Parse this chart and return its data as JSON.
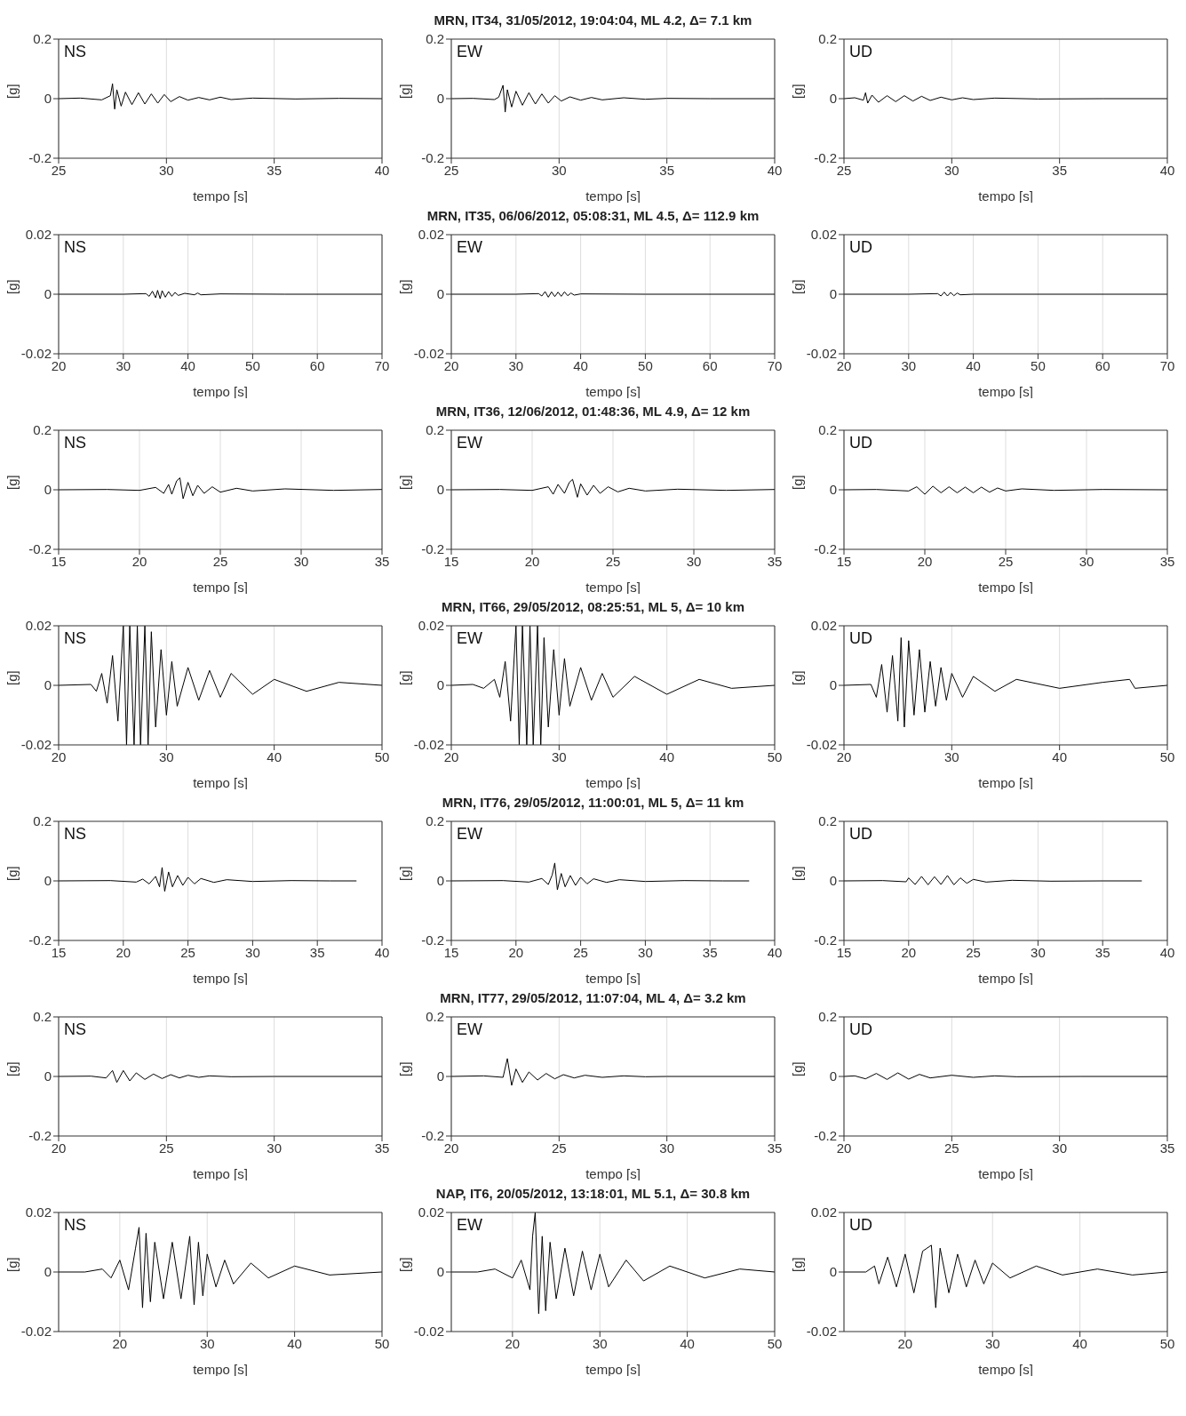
{
  "chart_data": [
    {
      "type": "line",
      "x": [
        25,
        26,
        27,
        27.4,
        27.5,
        27.6,
        27.7,
        27.9,
        28.1,
        28.4,
        28.7,
        29,
        29.3,
        29.6,
        29.9,
        30.2,
        30.6,
        31,
        31.5,
        32,
        32.5,
        33,
        34,
        36,
        38,
        40
      ],
      "values": [
        0,
        0.002,
        -0.004,
        0.01,
        0.05,
        -0.035,
        0.03,
        -0.025,
        0.022,
        -0.02,
        0.02,
        -0.018,
        0.016,
        -0.015,
        0.014,
        -0.01,
        0.007,
        -0.005,
        0.004,
        -0.004,
        0.005,
        -0.003,
        0.002,
        -0.001,
        0.001,
        0
      ],
      "color": "#000000",
      "xlim": [
        25,
        40
      ],
      "ylim": [
        -0.2,
        0.2
      ],
      "xticks": [
        25,
        30,
        35,
        40
      ],
      "yticks": [
        -0.2,
        0,
        0.2
      ],
      "xlabel": "tempo [s]",
      "ylabel": "[g]",
      "grid": "x",
      "annotations": [
        "NS"
      ]
    },
    {
      "type": "line",
      "title": "MRN, IT34, 31/05/2012, 19:04:04, ML 4.2, Δ= 7.1 km",
      "x": [
        25,
        26,
        27,
        27.2,
        27.4,
        27.5,
        27.6,
        27.8,
        28,
        28.3,
        28.6,
        28.9,
        29.2,
        29.5,
        29.8,
        30.1,
        30.5,
        31,
        31.5,
        32,
        33,
        34,
        35,
        37,
        40
      ],
      "values": [
        0,
        0.001,
        -0.003,
        0.005,
        0.045,
        -0.045,
        0.03,
        -0.028,
        0.025,
        -0.022,
        0.02,
        -0.018,
        0.016,
        -0.015,
        0.01,
        -0.008,
        0.006,
        -0.005,
        0.004,
        -0.004,
        0.003,
        -0.002,
        0.001,
        0,
        0
      ],
      "color": "#000000",
      "xlim": [
        25,
        40
      ],
      "ylim": [
        -0.2,
        0.2
      ],
      "xticks": [
        25,
        30,
        35,
        40
      ],
      "yticks": [
        -0.2,
        0,
        0.2
      ],
      "xlabel": "tempo [s]",
      "ylabel": "[g]",
      "grid": "x",
      "annotations": [
        "EW"
      ]
    },
    {
      "type": "line",
      "x": [
        25,
        25.5,
        25.9,
        26,
        26.1,
        26.3,
        26.6,
        27,
        27.4,
        27.8,
        28.2,
        28.6,
        29,
        29.5,
        30,
        30.5,
        31,
        32,
        34,
        37,
        40
      ],
      "values": [
        0,
        0.003,
        -0.005,
        0.02,
        -0.015,
        0.012,
        -0.012,
        0.01,
        -0.01,
        0.01,
        -0.008,
        0.008,
        -0.006,
        0.005,
        -0.004,
        0.003,
        -0.003,
        0.002,
        -0.001,
        0,
        0
      ],
      "color": "#000000",
      "xlim": [
        25,
        40
      ],
      "ylim": [
        -0.2,
        0.2
      ],
      "xticks": [
        25,
        30,
        35,
        40
      ],
      "yticks": [
        -0.2,
        0,
        0.2
      ],
      "xlabel": "tempo [s]",
      "ylabel": "[g]",
      "grid": "x",
      "annotations": [
        "UD"
      ]
    },
    {
      "type": "line",
      "x": [
        20,
        30,
        33.5,
        34,
        34.5,
        35,
        35.3,
        35.7,
        36,
        36.5,
        37,
        37.5,
        38,
        38.5,
        39.5,
        41,
        41.5,
        42,
        45,
        55,
        70
      ],
      "values": [
        0,
        0,
        0.0002,
        -0.0007,
        0.001,
        -0.0012,
        0.0013,
        -0.0015,
        0.0012,
        -0.001,
        0.0009,
        -0.0007,
        0.0006,
        -0.0004,
        0.0003,
        -0.0002,
        0.0004,
        -0.0002,
        0.0001,
        0,
        0
      ],
      "color": "#000000",
      "xlim": [
        20,
        70
      ],
      "ylim": [
        -0.02,
        0.02
      ],
      "xticks": [
        20,
        30,
        40,
        50,
        60,
        70
      ],
      "yticks": [
        -0.02,
        0,
        0.02
      ],
      "xlabel": "tempo [s]",
      "ylabel": "[g]",
      "grid": "x",
      "annotations": [
        "NS"
      ]
    },
    {
      "type": "line",
      "title": "MRN, IT35, 06/06/2012, 05:08:31, ML 4.5, Δ= 112.9 km",
      "x": [
        20,
        30,
        33.5,
        34,
        34.5,
        35,
        35.5,
        36,
        36.5,
        37,
        37.5,
        38,
        38.5,
        39,
        40,
        50,
        70
      ],
      "values": [
        0,
        0,
        0.0002,
        -0.0006,
        0.0009,
        -0.001,
        0.0008,
        -0.0008,
        0.0007,
        -0.0007,
        0.0008,
        -0.0005,
        0.0004,
        -0.0003,
        0.0001,
        0,
        0
      ],
      "color": "#000000",
      "xlim": [
        20,
        70
      ],
      "ylim": [
        -0.02,
        0.02
      ],
      "xticks": [
        20,
        30,
        40,
        50,
        60,
        70
      ],
      "yticks": [
        -0.02,
        0,
        0.02
      ],
      "xlabel": "tempo [s]",
      "ylabel": "[g]",
      "grid": "x",
      "annotations": [
        "EW"
      ]
    },
    {
      "type": "line",
      "x": [
        20,
        30,
        34.5,
        35,
        35.5,
        36,
        36.5,
        37,
        37.5,
        38,
        40,
        70
      ],
      "values": [
        0,
        0,
        0.0002,
        -0.0006,
        0.0007,
        -0.0006,
        0.0006,
        -0.0005,
        0.0004,
        -0.0002,
        0,
        0
      ],
      "color": "#000000",
      "xlim": [
        20,
        70
      ],
      "ylim": [
        -0.02,
        0.02
      ],
      "xticks": [
        20,
        30,
        40,
        50,
        60,
        70
      ],
      "yticks": [
        -0.02,
        0,
        0.02
      ],
      "xlabel": "tempo [s]",
      "ylabel": "[g]",
      "grid": "x",
      "annotations": [
        "UD"
      ]
    },
    {
      "type": "line",
      "x": [
        15,
        18,
        20,
        21,
        21.5,
        21.8,
        22,
        22.3,
        22.5,
        22.7,
        23,
        23.3,
        23.6,
        24,
        24.5,
        25,
        26,
        27,
        29,
        32,
        35
      ],
      "values": [
        0,
        0.001,
        -0.002,
        0.008,
        -0.012,
        0.018,
        -0.015,
        0.03,
        0.04,
        -0.03,
        0.025,
        -0.02,
        0.015,
        -0.012,
        0.01,
        -0.008,
        0.005,
        -0.004,
        0.003,
        -0.002,
        0.001
      ],
      "color": "#000000",
      "xlim": [
        15,
        35
      ],
      "ylim": [
        -0.2,
        0.2
      ],
      "xticks": [
        15,
        20,
        25,
        30,
        35
      ],
      "yticks": [
        -0.2,
        0,
        0.2
      ],
      "xlabel": "tempo [s]",
      "ylabel": "[g]",
      "grid": "x",
      "annotations": [
        "NS"
      ]
    },
    {
      "type": "line",
      "title": "MRN, IT36, 12/06/2012, 01:48:36, ML 4.9, Δ= 12 km",
      "x": [
        15,
        18,
        20,
        21,
        21.3,
        21.6,
        22,
        22.3,
        22.5,
        22.8,
        23,
        23.4,
        23.8,
        24.2,
        24.7,
        25.3,
        26,
        27,
        29,
        32,
        35
      ],
      "values": [
        0,
        0.001,
        -0.002,
        0.01,
        -0.015,
        0.018,
        -0.012,
        0.025,
        0.035,
        -0.025,
        0.02,
        -0.018,
        0.015,
        -0.012,
        0.01,
        -0.007,
        0.005,
        -0.004,
        0.002,
        -0.002,
        0.001
      ],
      "color": "#000000",
      "xlim": [
        15,
        35
      ],
      "ylim": [
        -0.2,
        0.2
      ],
      "xticks": [
        15,
        20,
        25,
        30,
        35
      ],
      "yticks": [
        -0.2,
        0,
        0.2
      ],
      "xlabel": "tempo [s]",
      "ylabel": "[g]",
      "grid": "x",
      "annotations": [
        "EW"
      ]
    },
    {
      "type": "line",
      "x": [
        15,
        17,
        19,
        19.5,
        20,
        20.5,
        21,
        21.5,
        22,
        22.5,
        23,
        23.5,
        24,
        24.5,
        25,
        26,
        28,
        31,
        35
      ],
      "values": [
        0,
        0.001,
        -0.004,
        0.01,
        -0.015,
        0.012,
        -0.01,
        0.01,
        -0.01,
        0.009,
        -0.01,
        0.009,
        -0.008,
        0.006,
        -0.004,
        0.003,
        -0.002,
        0.001,
        0
      ],
      "color": "#000000",
      "xlim": [
        15,
        35
      ],
      "ylim": [
        -0.2,
        0.2
      ],
      "xticks": [
        15,
        20,
        25,
        30,
        35
      ],
      "yticks": [
        -0.2,
        0,
        0.2
      ],
      "xlabel": "tempo [s]",
      "ylabel": "[g]",
      "grid": "x",
      "annotations": [
        "UD"
      ]
    },
    {
      "type": "line",
      "x": [
        20,
        23,
        23.5,
        24,
        24.5,
        25,
        25.5,
        26,
        26.3,
        26.6,
        27,
        27.3,
        27.6,
        28,
        28.3,
        28.6,
        29,
        29.5,
        30,
        30.5,
        31,
        32,
        33,
        34,
        35,
        36,
        38,
        40,
        43,
        46,
        50
      ],
      "values": [
        0,
        0.0003,
        -0.002,
        0.004,
        -0.006,
        0.01,
        -0.012,
        0.02,
        -0.02,
        0.02,
        -0.02,
        0.02,
        -0.02,
        0.02,
        -0.02,
        0.018,
        -0.014,
        0.012,
        -0.01,
        0.008,
        -0.007,
        0.006,
        -0.005,
        0.005,
        -0.004,
        0.004,
        -0.003,
        0.002,
        -0.002,
        0.001,
        0
      ],
      "color": "#000000",
      "xlim": [
        20,
        50
      ],
      "ylim": [
        -0.02,
        0.02
      ],
      "xticks": [
        20,
        30,
        40,
        50
      ],
      "yticks": [
        -0.02,
        0,
        0.02
      ],
      "xlabel": "tempo [s]",
      "ylabel": "[g]",
      "grid": "x",
      "annotations": [
        "NS"
      ]
    },
    {
      "type": "line",
      "title": "MRN, IT66, 29/05/2012, 08:25:51, ML 5, Δ= 10 km",
      "x": [
        20,
        22,
        23,
        24,
        24.5,
        25,
        25.5,
        26,
        26.3,
        26.6,
        27,
        27.3,
        27.6,
        28,
        28.3,
        28.6,
        29,
        29.5,
        30,
        30.5,
        31,
        32,
        33,
        34,
        35,
        37,
        40,
        43,
        46,
        50
      ],
      "values": [
        0,
        0.0003,
        -0.001,
        0.002,
        -0.004,
        0.008,
        -0.012,
        0.02,
        -0.02,
        0.02,
        -0.02,
        0.02,
        -0.02,
        0.02,
        -0.02,
        0.016,
        -0.014,
        0.012,
        -0.01,
        0.009,
        -0.007,
        0.006,
        -0.005,
        0.004,
        -0.004,
        0.003,
        -0.003,
        0.002,
        -0.001,
        0
      ],
      "color": "#000000",
      "xlim": [
        20,
        50
      ],
      "ylim": [
        -0.02,
        0.02
      ],
      "xticks": [
        20,
        30,
        40,
        50
      ],
      "yticks": [
        -0.02,
        0,
        0.02
      ],
      "xlabel": "tempo [s]",
      "ylabel": "[g]",
      "grid": "x",
      "annotations": [
        "EW"
      ]
    },
    {
      "type": "line",
      "x": [
        20,
        22.5,
        23,
        23.5,
        24,
        24.5,
        25,
        25.3,
        25.6,
        26,
        26.5,
        27,
        27.5,
        28,
        28.5,
        29,
        29.5,
        30,
        31,
        32,
        34,
        36,
        40,
        44,
        46.5,
        47,
        50
      ],
      "values": [
        0,
        0.0003,
        -0.004,
        0.007,
        -0.009,
        0.01,
        -0.012,
        0.016,
        -0.014,
        0.015,
        -0.01,
        0.012,
        -0.009,
        0.008,
        -0.007,
        0.006,
        -0.005,
        0.004,
        -0.004,
        0.003,
        -0.002,
        0.002,
        -0.001,
        0.001,
        0.002,
        -0.001,
        0
      ],
      "color": "#000000",
      "xlim": [
        20,
        50
      ],
      "ylim": [
        -0.02,
        0.02
      ],
      "xticks": [
        20,
        30,
        40,
        50
      ],
      "yticks": [
        -0.02,
        0,
        0.02
      ],
      "xlabel": "tempo [s]",
      "ylabel": "[g]",
      "grid": "x",
      "annotations": [
        "UD"
      ]
    },
    {
      "type": "line",
      "x": [
        15,
        19,
        21,
        21.5,
        22,
        22.5,
        22.8,
        23,
        23.2,
        23.5,
        23.8,
        24.2,
        24.6,
        25,
        25.5,
        26,
        27,
        28,
        30,
        33,
        36,
        38
      ],
      "values": [
        0,
        0.001,
        -0.004,
        0.006,
        -0.01,
        0.015,
        -0.02,
        0.045,
        -0.035,
        0.03,
        -0.02,
        0.018,
        -0.015,
        0.012,
        -0.01,
        0.008,
        -0.005,
        0.004,
        -0.002,
        0.001,
        0,
        0
      ],
      "color": "#000000",
      "xlim": [
        15,
        40
      ],
      "ylim": [
        -0.2,
        0.2
      ],
      "xticks": [
        15,
        20,
        25,
        30,
        35,
        40
      ],
      "yticks": [
        -0.2,
        0,
        0.2
      ],
      "xlabel": "tempo [s]",
      "ylabel": "[g]",
      "grid": "x",
      "annotations": [
        "NS"
      ]
    },
    {
      "type": "line",
      "title": "MRN, IT76, 29/05/2012, 11:00:01, ML 5, Δ= 11 km",
      "x": [
        15,
        19,
        21,
        22,
        22.5,
        22.8,
        23,
        23.2,
        23.5,
        23.8,
        24.2,
        24.6,
        25,
        25.5,
        26,
        27,
        28,
        30,
        33,
        36,
        38
      ],
      "values": [
        0,
        0.001,
        -0.004,
        0.008,
        -0.012,
        0.02,
        0.06,
        -0.03,
        0.025,
        -0.02,
        0.018,
        -0.015,
        0.012,
        -0.01,
        0.007,
        -0.005,
        0.004,
        -0.002,
        0.001,
        0,
        0
      ],
      "color": "#000000",
      "xlim": [
        15,
        40
      ],
      "ylim": [
        -0.2,
        0.2
      ],
      "xticks": [
        15,
        20,
        25,
        30,
        35,
        40
      ],
      "yticks": [
        -0.2,
        0,
        0.2
      ],
      "xlabel": "tempo [s]",
      "ylabel": "[g]",
      "grid": "x",
      "annotations": [
        "EW"
      ]
    },
    {
      "type": "line",
      "x": [
        15,
        18,
        19.8,
        20,
        20.5,
        21,
        21.5,
        22,
        22.5,
        23,
        23.5,
        24,
        24.5,
        25,
        26,
        28,
        31,
        35,
        38
      ],
      "values": [
        0,
        0.001,
        -0.003,
        0.01,
        -0.012,
        0.015,
        -0.013,
        0.014,
        -0.012,
        0.018,
        -0.013,
        0.01,
        -0.008,
        0.005,
        -0.004,
        0.002,
        -0.001,
        0,
        0
      ],
      "color": "#000000",
      "xlim": [
        15,
        40
      ],
      "ylim": [
        -0.2,
        0.2
      ],
      "xticks": [
        15,
        20,
        25,
        30,
        35,
        40
      ],
      "yticks": [
        -0.2,
        0,
        0.2
      ],
      "xlabel": "tempo [s]",
      "ylabel": "[g]",
      "grid": "x",
      "annotations": [
        "UD"
      ]
    },
    {
      "type": "line",
      "x": [
        20,
        21.5,
        22.2,
        22.5,
        22.7,
        23,
        23.3,
        23.6,
        24,
        24.4,
        24.8,
        25.2,
        25.6,
        26,
        26.5,
        27,
        28,
        30,
        35
      ],
      "values": [
        0,
        0.001,
        -0.005,
        0.02,
        -0.02,
        0.02,
        -0.015,
        0.012,
        -0.01,
        0.008,
        -0.007,
        0.006,
        -0.005,
        0.004,
        -0.003,
        0.002,
        -0.001,
        0,
        0
      ],
      "color": "#000000",
      "xlim": [
        20,
        35
      ],
      "ylim": [
        -0.2,
        0.2
      ],
      "xticks": [
        20,
        25,
        30,
        35
      ],
      "yticks": [
        -0.2,
        0,
        0.2
      ],
      "xlabel": "tempo [s]",
      "ylabel": "[g]",
      "grid": "x",
      "annotations": [
        "NS"
      ]
    },
    {
      "type": "line",
      "title": "MRN, IT77, 29/05/2012, 11:07:04, ML 4, Δ= 3.2 km",
      "x": [
        20,
        21.5,
        22.4,
        22.6,
        22.8,
        23,
        23.3,
        23.6,
        24,
        24.4,
        24.8,
        25.2,
        25.7,
        26.2,
        27,
        28,
        29,
        30,
        35
      ],
      "values": [
        0,
        0.002,
        -0.003,
        0.06,
        -0.03,
        0.025,
        -0.02,
        0.015,
        -0.012,
        0.01,
        -0.008,
        0.006,
        -0.005,
        0.004,
        -0.003,
        0.002,
        -0.001,
        0,
        0
      ],
      "color": "#000000",
      "xlim": [
        20,
        35
      ],
      "ylim": [
        -0.2,
        0.2
      ],
      "xticks": [
        20,
        25,
        30,
        35
      ],
      "yticks": [
        -0.2,
        0,
        0.2
      ],
      "xlabel": "tempo [s]",
      "ylabel": "[g]",
      "grid": "x",
      "annotations": [
        "EW"
      ]
    },
    {
      "type": "line",
      "x": [
        20,
        20.5,
        21,
        21.5,
        22,
        22.5,
        23,
        23.5,
        24,
        25,
        26,
        27,
        28,
        31,
        35
      ],
      "values": [
        0,
        0.002,
        -0.008,
        0.01,
        -0.01,
        0.012,
        -0.009,
        0.007,
        -0.005,
        0.004,
        -0.003,
        0.002,
        -0.001,
        0,
        0
      ],
      "color": "#000000",
      "xlim": [
        20,
        35
      ],
      "ylim": [
        -0.2,
        0.2
      ],
      "xticks": [
        20,
        25,
        30,
        35
      ],
      "yticks": [
        -0.2,
        0,
        0.2
      ],
      "xlabel": "tempo [s]",
      "ylabel": "[g]",
      "grid": "x",
      "annotations": [
        "UD"
      ]
    },
    {
      "type": "line",
      "x": [
        13,
        16,
        18,
        19,
        20,
        21,
        21.8,
        22.2,
        22.6,
        23,
        23.5,
        24,
        25,
        26,
        27,
        28,
        28.5,
        29,
        29.5,
        30,
        31,
        32,
        33,
        35,
        37,
        40,
        44,
        50
      ],
      "values": [
        0,
        0,
        0.001,
        -0.002,
        0.004,
        -0.006,
        0.008,
        0.015,
        -0.012,
        0.013,
        -0.01,
        0.01,
        -0.009,
        0.01,
        -0.009,
        0.012,
        -0.011,
        0.01,
        -0.008,
        0.006,
        -0.005,
        0.004,
        -0.004,
        0.003,
        -0.002,
        0.002,
        -0.001,
        0
      ],
      "color": "#000000",
      "xlim": [
        13,
        50
      ],
      "ylim": [
        -0.02,
        0.02
      ],
      "xticks": [
        20,
        30,
        40,
        50
      ],
      "yticks": [
        -0.02,
        0,
        0.02
      ],
      "xlabel": "tempo [s]",
      "ylabel": "[g]",
      "grid": "x",
      "annotations": [
        "NS"
      ]
    },
    {
      "type": "line",
      "title": "NAP, IT6, 20/05/2012, 13:18:01, ML 5.1, Δ= 30.8 km",
      "x": [
        13,
        16,
        18,
        20,
        21,
        22,
        22.3,
        22.6,
        23,
        23.4,
        23.8,
        24.3,
        25,
        26,
        27,
        28,
        29,
        30,
        31,
        33,
        35,
        38,
        42,
        46,
        50
      ],
      "values": [
        0,
        0,
        0.001,
        -0.002,
        0.004,
        -0.006,
        0.012,
        0.02,
        -0.014,
        0.012,
        -0.013,
        0.01,
        -0.009,
        0.008,
        -0.008,
        0.007,
        -0.006,
        0.006,
        -0.005,
        0.004,
        -0.003,
        0.002,
        -0.002,
        0.001,
        0
      ],
      "color": "#000000",
      "xlim": [
        13,
        50
      ],
      "ylim": [
        -0.02,
        0.02
      ],
      "xticks": [
        20,
        30,
        40,
        50
      ],
      "yticks": [
        -0.02,
        0,
        0.02
      ],
      "xlabel": "tempo [s]",
      "ylabel": "[g]",
      "grid": "x",
      "annotations": [
        "EW"
      ]
    },
    {
      "type": "line",
      "x": [
        13,
        15.5,
        16.5,
        17,
        18,
        19,
        20,
        21,
        22,
        23,
        23.5,
        24,
        25,
        26,
        27,
        28,
        29,
        30,
        32,
        35,
        38,
        42,
        46,
        50
      ],
      "values": [
        0,
        0,
        0.002,
        -0.004,
        0.005,
        -0.005,
        0.006,
        -0.007,
        0.007,
        0.009,
        -0.012,
        0.008,
        -0.007,
        0.006,
        -0.005,
        0.004,
        -0.004,
        0.003,
        -0.002,
        0.002,
        -0.001,
        0.001,
        -0.001,
        0
      ],
      "color": "#000000",
      "xlim": [
        13,
        50
      ],
      "ylim": [
        -0.02,
        0.02
      ],
      "xticks": [
        20,
        30,
        40,
        50
      ],
      "yticks": [
        -0.02,
        0,
        0.02
      ],
      "xlabel": "tempo [s]",
      "ylabel": "[g]",
      "grid": "x",
      "annotations": [
        "UD"
      ]
    }
  ]
}
